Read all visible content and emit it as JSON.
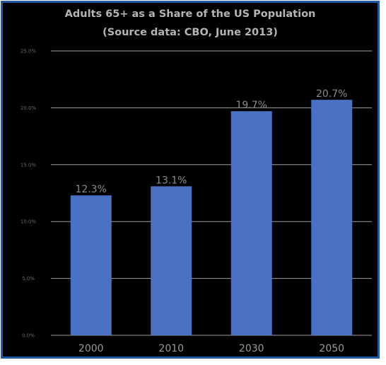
{
  "chart_data": {
    "type": "bar",
    "title": "Adults 65+ as a Share of the US Population",
    "subtitle": "(Source data: CBO, June 2013)",
    "categories": [
      "2000",
      "2010",
      "2030",
      "2050"
    ],
    "values": [
      12.3,
      13.1,
      19.7,
      20.7
    ],
    "data_labels": [
      "12.3%",
      "13.1%",
      "19.7%",
      "20.7%"
    ],
    "y_ticks": [
      0,
      5,
      10,
      15,
      20,
      25
    ],
    "y_tick_labels": [
      "0.0%",
      "5.0%",
      "10.0%",
      "15.0%",
      "20.0%",
      "25.0%"
    ],
    "ylim": [
      0,
      25
    ],
    "xlabel": "",
    "ylabel": "",
    "grid": true,
    "legend": "none",
    "colors": {
      "bar": "#4a72c4",
      "background": "#000000",
      "frame": "#1e5aa8",
      "gridline": "#a0a0a0"
    }
  }
}
